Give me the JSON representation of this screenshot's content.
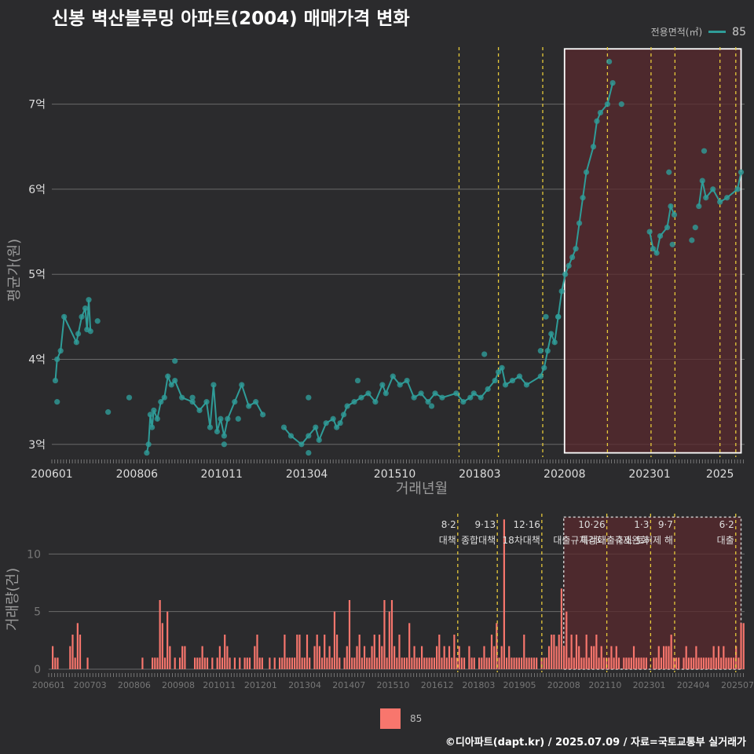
{
  "chart_data": [
    {
      "type": "line",
      "title": "신봉 벽산블루밍 아파트(2004) 매매가격 변화",
      "xlabel": "거래년월",
      "ylabel": "평균가(원)",
      "ylim": [
        2.85,
        7.8
      ],
      "y_ticks": [
        {
          "v": 3,
          "label": "3억"
        },
        {
          "v": 4,
          "label": "4억"
        },
        {
          "v": 5,
          "label": "5억"
        },
        {
          "v": 6,
          "label": "6억"
        },
        {
          "v": 7,
          "label": "7억"
        }
      ],
      "x_range": [
        2006.0,
        2025.7
      ],
      "x_ticks": [
        {
          "v": 2006.0,
          "label": "200601"
        },
        {
          "v": 2008.42,
          "label": "200806"
        },
        {
          "v": 2010.83,
          "label": "201011"
        },
        {
          "v": 2013.25,
          "label": "201304"
        },
        {
          "v": 2015.75,
          "label": "201510"
        },
        {
          "v": 2018.17,
          "label": "201803"
        },
        {
          "v": 2020.58,
          "label": "202008"
        },
        {
          "v": 2023.0,
          "label": "202301"
        },
        {
          "v": 2025.0,
          "label": "2025"
        }
      ],
      "legend": {
        "title": "전용면적(㎡)",
        "entries": [
          "85"
        ]
      },
      "policy_lines": [
        2017.58,
        2018.7,
        2019.96,
        2021.8,
        2023.04,
        2023.72,
        2025.0,
        2025.45
      ],
      "highlight": {
        "x0": 2020.58,
        "x1": 2025.6,
        "y0": 2.9,
        "y1": 7.65
      },
      "series": [
        {
          "name": "85",
          "points": [
            [
              2006.1,
              3.75
            ],
            [
              2006.15,
              4.0
            ],
            [
              2006.25,
              4.1
            ],
            [
              2006.35,
              4.5
            ],
            [
              2006.7,
              4.2
            ],
            [
              2006.75,
              4.3
            ],
            [
              2006.85,
              4.5
            ],
            [
              2006.95,
              4.6
            ],
            [
              2007.0,
              4.35
            ],
            [
              2007.05,
              4.7
            ],
            [
              2007.1,
              4.33
            ],
            [
              2008.7,
              2.9
            ],
            [
              2008.75,
              3.0
            ],
            [
              2008.8,
              3.35
            ],
            [
              2008.85,
              3.2
            ],
            [
              2008.9,
              3.4
            ],
            [
              2009.0,
              3.3
            ],
            [
              2009.1,
              3.5
            ],
            [
              2009.2,
              3.55
            ],
            [
              2009.3,
              3.8
            ],
            [
              2009.4,
              3.7
            ],
            [
              2009.5,
              3.75
            ],
            [
              2009.7,
              3.55
            ],
            [
              2010.0,
              3.5
            ],
            [
              2010.2,
              3.4
            ],
            [
              2010.4,
              3.5
            ],
            [
              2010.5,
              3.2
            ],
            [
              2010.6,
              3.7
            ],
            [
              2010.7,
              3.15
            ],
            [
              2010.8,
              3.3
            ],
            [
              2010.9,
              3.1
            ],
            [
              2011.0,
              3.3
            ],
            [
              2011.2,
              3.5
            ],
            [
              2011.4,
              3.7
            ],
            [
              2011.6,
              3.45
            ],
            [
              2011.8,
              3.5
            ],
            [
              2012.0,
              3.35
            ],
            [
              2012.6,
              3.2
            ],
            [
              2012.8,
              3.1
            ],
            [
              2013.1,
              3.0
            ],
            [
              2013.3,
              3.1
            ],
            [
              2013.5,
              3.2
            ],
            [
              2013.6,
              3.05
            ],
            [
              2013.8,
              3.25
            ],
            [
              2014.0,
              3.3
            ],
            [
              2014.1,
              3.2
            ],
            [
              2014.2,
              3.25
            ],
            [
              2014.3,
              3.35
            ],
            [
              2014.4,
              3.45
            ],
            [
              2014.6,
              3.5
            ],
            [
              2014.8,
              3.55
            ],
            [
              2015.0,
              3.6
            ],
            [
              2015.2,
              3.5
            ],
            [
              2015.4,
              3.7
            ],
            [
              2015.5,
              3.6
            ],
            [
              2015.7,
              3.8
            ],
            [
              2015.9,
              3.7
            ],
            [
              2016.1,
              3.75
            ],
            [
              2016.3,
              3.55
            ],
            [
              2016.5,
              3.6
            ],
            [
              2016.7,
              3.5
            ],
            [
              2016.9,
              3.6
            ],
            [
              2017.1,
              3.55
            ],
            [
              2017.5,
              3.6
            ],
            [
              2017.7,
              3.5
            ],
            [
              2017.9,
              3.55
            ],
            [
              2018.0,
              3.6
            ],
            [
              2018.2,
              3.55
            ],
            [
              2018.4,
              3.65
            ],
            [
              2018.6,
              3.75
            ],
            [
              2018.7,
              3.85
            ],
            [
              2018.8,
              3.9
            ],
            [
              2018.9,
              3.7
            ],
            [
              2019.1,
              3.75
            ],
            [
              2019.3,
              3.8
            ],
            [
              2019.5,
              3.7
            ],
            [
              2019.9,
              3.8
            ],
            [
              2020.0,
              3.9
            ],
            [
              2020.1,
              4.1
            ],
            [
              2020.2,
              4.3
            ],
            [
              2020.3,
              4.2
            ],
            [
              2020.4,
              4.5
            ],
            [
              2020.5,
              4.8
            ],
            [
              2020.6,
              5.0
            ],
            [
              2020.7,
              5.1
            ],
            [
              2020.8,
              5.2
            ],
            [
              2020.9,
              5.3
            ],
            [
              2021.0,
              5.6
            ],
            [
              2021.1,
              5.9
            ],
            [
              2021.2,
              6.2
            ],
            [
              2021.4,
              6.5
            ],
            [
              2021.5,
              6.8
            ],
            [
              2021.6,
              6.9
            ],
            [
              2021.8,
              7.0
            ],
            [
              2021.95,
              7.25
            ],
            [
              2023.0,
              5.5
            ],
            [
              2023.1,
              5.3
            ],
            [
              2023.2,
              5.25
            ],
            [
              2023.3,
              5.45
            ],
            [
              2023.5,
              5.55
            ],
            [
              2023.6,
              5.8
            ],
            [
              2023.7,
              5.7
            ],
            [
              2024.4,
              5.8
            ],
            [
              2024.5,
              6.1
            ],
            [
              2024.6,
              5.9
            ],
            [
              2024.8,
              6.0
            ],
            [
              2025.0,
              5.85
            ],
            [
              2025.2,
              5.9
            ],
            [
              2025.5,
              6.0
            ],
            [
              2025.6,
              6.2
            ]
          ]
        }
      ],
      "extra_points": [
        [
          2006.15,
          3.5
        ],
        [
          2007.3,
          4.45
        ],
        [
          2007.6,
          3.38
        ],
        [
          2008.2,
          3.55
        ],
        [
          2009.5,
          3.98
        ],
        [
          2010.0,
          3.55
        ],
        [
          2010.9,
          3.0
        ],
        [
          2011.3,
          3.3
        ],
        [
          2013.3,
          3.55
        ],
        [
          2013.3,
          2.9
        ],
        [
          2014.7,
          3.75
        ],
        [
          2016.8,
          3.45
        ],
        [
          2018.3,
          4.06
        ],
        [
          2019.9,
          4.1
        ],
        [
          2020.05,
          4.5
        ],
        [
          2020.4,
          4.5
        ],
        [
          2021.85,
          7.5
        ],
        [
          2022.2,
          7.0
        ],
        [
          2023.55,
          6.2
        ],
        [
          2023.65,
          5.35
        ],
        [
          2024.55,
          6.45
        ],
        [
          2024.2,
          5.4
        ],
        [
          2024.3,
          5.55
        ]
      ]
    },
    {
      "type": "bar",
      "xlabel": "",
      "ylabel": "거래량(건)",
      "ylim": [
        0,
        13.5
      ],
      "y_ticks": [
        {
          "v": 0,
          "label": "0"
        },
        {
          "v": 5,
          "label": "5"
        },
        {
          "v": 10,
          "label": "10"
        }
      ],
      "x_range": [
        2006.0,
        2025.7
      ],
      "x_ticks": [
        {
          "v": 2006.0,
          "label": "200601"
        },
        {
          "v": 2007.17,
          "label": "200703"
        },
        {
          "v": 2008.42,
          "label": "200806"
        },
        {
          "v": 2009.67,
          "label": "200908"
        },
        {
          "v": 2010.83,
          "label": "201011"
        },
        {
          "v": 2012.0,
          "label": "201201"
        },
        {
          "v": 2013.25,
          "label": "201304"
        },
        {
          "v": 2014.5,
          "label": "201407"
        },
        {
          "v": 2015.75,
          "label": "201510"
        },
        {
          "v": 2017.0,
          "label": "201612"
        },
        {
          "v": 2018.17,
          "label": "201803"
        },
        {
          "v": 2019.33,
          "label": "201905"
        },
        {
          "v": 2020.58,
          "label": "202008"
        },
        {
          "v": 2021.75,
          "label": "202110"
        },
        {
          "v": 2023.0,
          "label": "202301"
        },
        {
          "v": 2024.25,
          "label": "202404"
        },
        {
          "v": 2025.5,
          "label": "202507"
        }
      ],
      "legend": {
        "entries": [
          "85"
        ]
      },
      "policies": [
        {
          "x": 2017.58,
          "date": "8·2",
          "label": "대책"
        },
        {
          "x": 2018.7,
          "date": "9·13",
          "label": "종합대책"
        },
        {
          "x": 2019.96,
          "date": "12·16",
          "label": "18차대책"
        },
        {
          "x": 2021.8,
          "date": "10·26",
          "label": "대출규제강화"
        },
        {
          "x": 2023.04,
          "date": "1·3",
          "label": "규제완화"
        },
        {
          "x": 2023.72,
          "date": "9·7",
          "label": "특례대출축소 토허제 해"
        },
        {
          "x": 2025.45,
          "date": "6·2",
          "label": "대출"
        }
      ],
      "highlight": {
        "x0": 2020.58,
        "x1": 2025.6,
        "y0": 0,
        "y1": 13.2
      },
      "values": [
        2,
        1,
        1,
        0,
        0,
        0,
        0,
        2,
        3,
        1,
        4,
        3,
        0,
        0,
        1,
        0,
        0,
        0,
        0,
        0,
        0,
        0,
        0,
        0,
        0,
        0,
        0,
        0,
        0,
        0,
        0,
        0,
        0,
        0,
        0,
        0,
        1,
        0,
        0,
        0,
        1,
        1,
        1,
        6,
        4,
        1,
        5,
        2,
        0,
        1,
        0,
        1,
        2,
        2,
        0,
        0,
        0,
        1,
        1,
        1,
        2,
        1,
        1,
        0,
        1,
        0,
        1,
        2,
        1,
        3,
        2,
        1,
        0,
        1,
        0,
        1,
        0,
        1,
        1,
        1,
        0,
        2,
        3,
        1,
        1,
        0,
        0,
        1,
        0,
        1,
        0,
        1,
        1,
        3,
        1,
        1,
        1,
        1,
        3,
        3,
        1,
        1,
        3,
        1,
        0,
        2,
        3,
        2,
        1,
        3,
        1,
        2,
        1,
        5,
        3,
        1,
        0,
        1,
        2,
        6,
        1,
        1,
        2,
        3,
        1,
        2,
        1,
        1,
        2,
        3,
        1,
        3,
        2,
        6,
        1,
        5,
        6,
        2,
        1,
        3,
        1,
        1,
        1,
        4,
        1,
        2,
        1,
        1,
        2,
        1,
        1,
        1,
        1,
        1,
        2,
        3,
        1,
        2,
        1,
        2,
        1,
        3,
        1,
        2,
        1,
        1,
        0,
        2,
        1,
        1,
        0,
        1,
        1,
        2,
        1,
        1,
        3,
        2,
        4,
        1,
        2,
        13,
        1,
        2,
        1,
        1,
        1,
        1,
        1,
        3,
        1,
        1,
        1,
        1,
        1,
        0,
        1,
        1,
        1,
        2,
        3,
        3,
        2,
        3,
        7,
        2,
        5,
        1,
        3,
        1,
        3,
        2,
        1,
        1,
        3,
        1,
        2,
        2,
        3,
        1,
        2,
        1,
        1,
        1,
        2,
        1,
        2,
        1,
        0,
        1,
        1,
        1,
        1,
        2,
        1,
        1,
        1,
        1,
        1,
        0,
        0,
        1,
        1,
        2,
        1,
        2,
        2,
        2,
        3,
        1,
        1,
        1,
        0,
        1,
        2,
        1,
        1,
        1,
        2,
        1,
        1,
        1,
        1,
        1,
        1,
        2,
        1,
        2,
        1,
        2,
        1,
        1,
        1,
        1,
        2,
        1,
        4,
        4
      ]
    }
  ],
  "footer": "©디아파트(dapt.kr) / 2025.07.09 / 자료=국토교통부 실거래가",
  "colors": {
    "bg": "#2b2b2d",
    "line": "#2f9c98",
    "bar": "#f8766d",
    "policy": "#e6c93a",
    "highlight": "#5a2a2d"
  }
}
